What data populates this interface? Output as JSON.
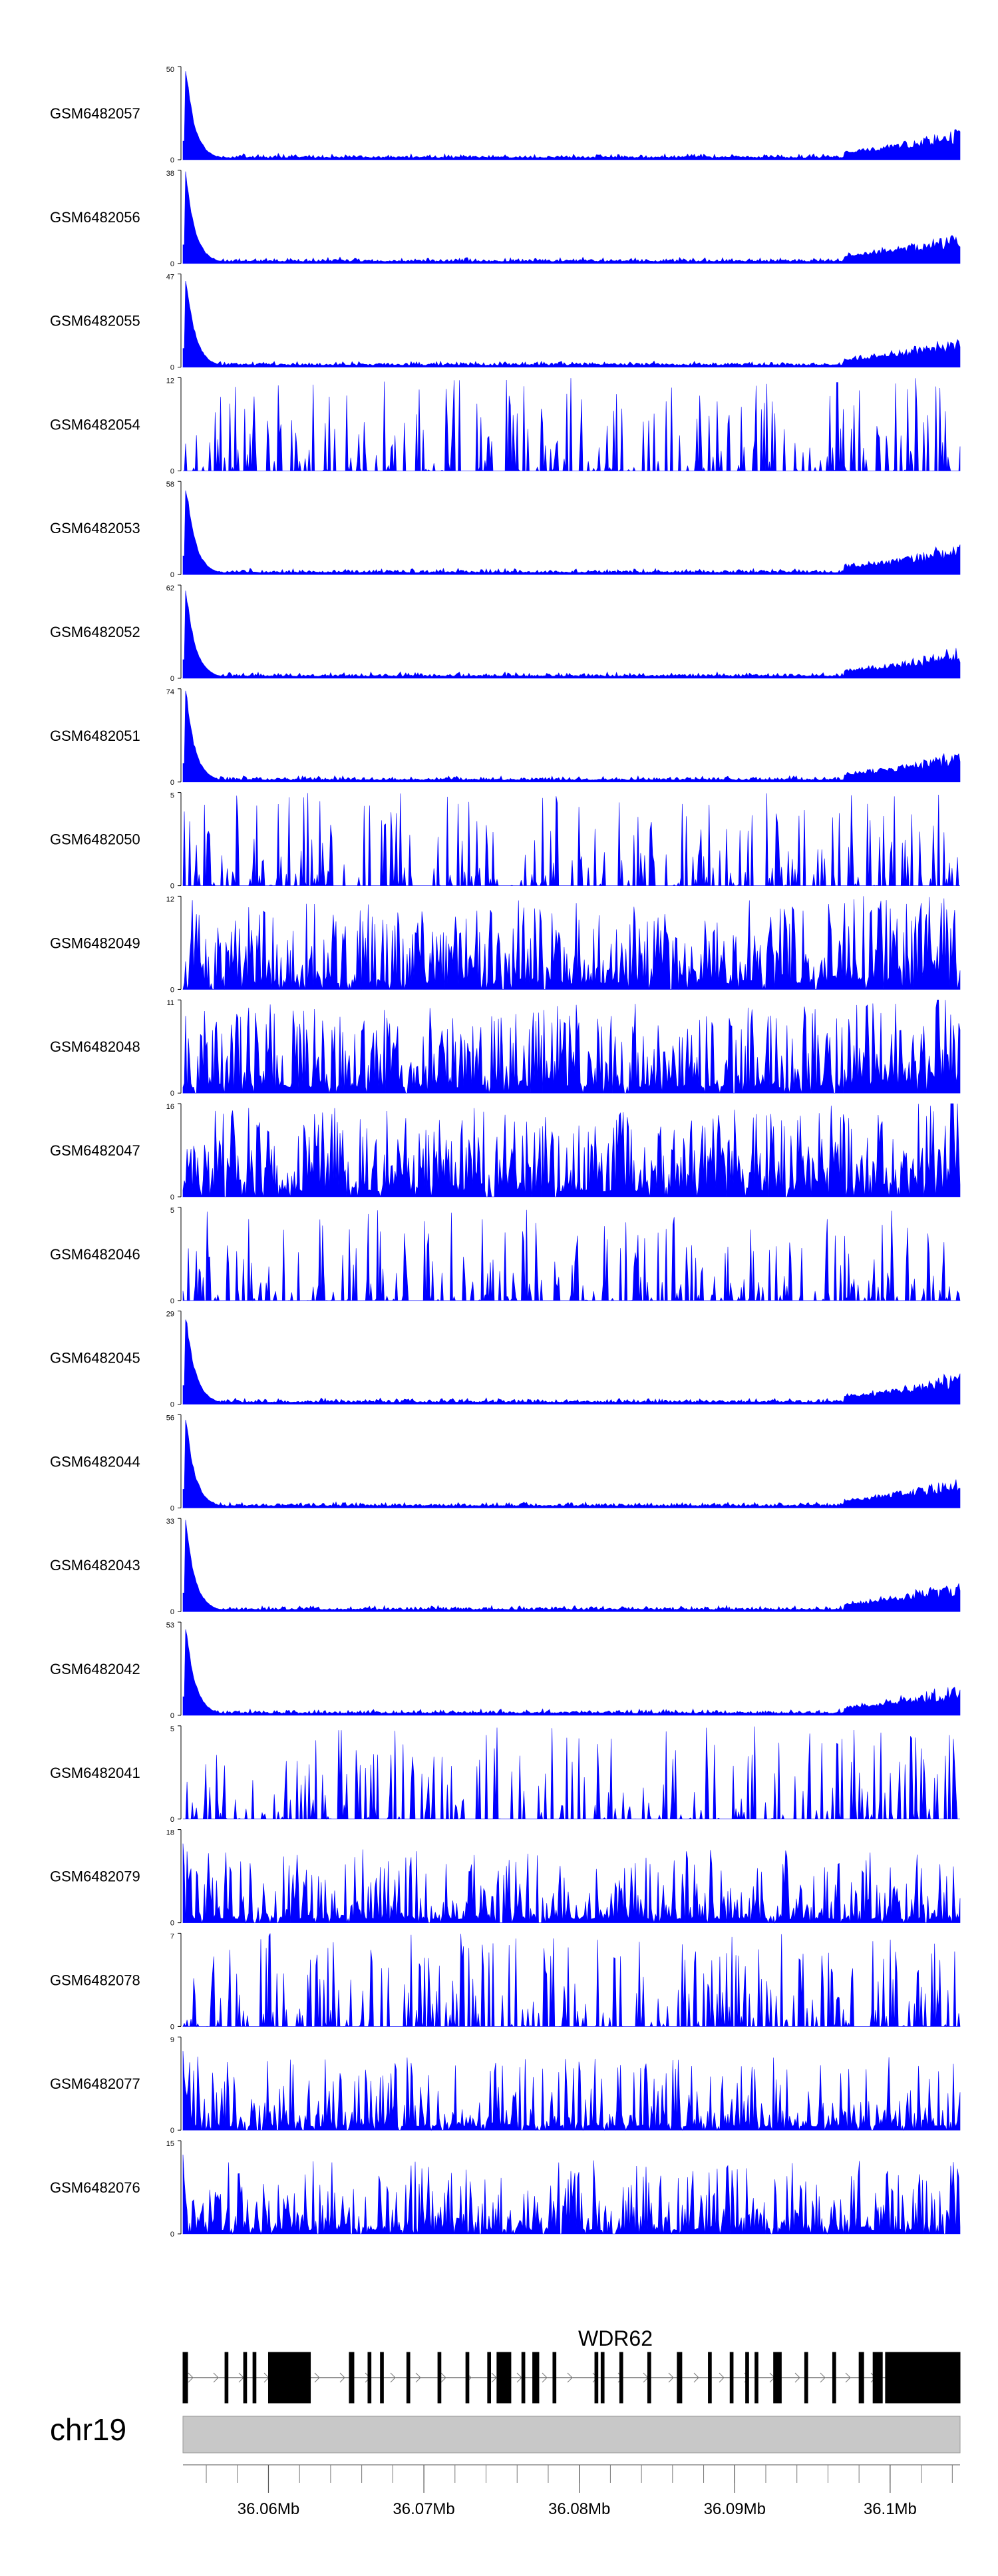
{
  "chart_data": {
    "type": "area",
    "title": "",
    "region": {
      "chromosome": "chr19",
      "start_mb": 36.0545,
      "end_mb": 36.1045,
      "ticks": [
        {
          "value": 36.06,
          "label": "36.06Mb"
        },
        {
          "value": 36.07,
          "label": "36.07Mb"
        },
        {
          "value": 36.08,
          "label": "36.08Mb"
        },
        {
          "value": 36.09,
          "label": "36.09Mb"
        },
        {
          "value": 36.1,
          "label": "36.1Mb"
        }
      ],
      "minor_tick_step_mb": 0.002
    },
    "series_color": "#0000ff",
    "ideogram_color": "#c8c8c8",
    "tracks": [
      {
        "name": "GSM6482057",
        "ymax": 50,
        "ymin_label": "0",
        "ymax_label": "50",
        "profile": "peak"
      },
      {
        "name": "GSM6482056",
        "ymax": 38,
        "ymin_label": "0",
        "ymax_label": "38",
        "profile": "peak"
      },
      {
        "name": "GSM6482055",
        "ymax": 47,
        "ymin_label": "0",
        "ymax_label": "47",
        "profile": "peak"
      },
      {
        "name": "GSM6482054",
        "ymax": 12,
        "ymin_label": "0",
        "ymax_label": "12",
        "profile": "noisy"
      },
      {
        "name": "GSM6482053",
        "ymax": 58,
        "ymin_label": "0",
        "ymax_label": "58",
        "profile": "peak"
      },
      {
        "name": "GSM6482052",
        "ymax": 62,
        "ymin_label": "0",
        "ymax_label": "62",
        "profile": "peak"
      },
      {
        "name": "GSM6482051",
        "ymax": 74,
        "ymin_label": "0",
        "ymax_label": "74",
        "profile": "peak"
      },
      {
        "name": "GSM6482050",
        "ymax": 5,
        "ymin_label": "0",
        "ymax_label": "5",
        "profile": "noisy"
      },
      {
        "name": "GSM6482049",
        "ymax": 12,
        "ymin_label": "0",
        "ymax_label": "12",
        "profile": "dense"
      },
      {
        "name": "GSM6482048",
        "ymax": 11,
        "ymin_label": "0",
        "ymax_label": "11",
        "profile": "dense"
      },
      {
        "name": "GSM6482047",
        "ymax": 16,
        "ymin_label": "0",
        "ymax_label": "16",
        "profile": "dense"
      },
      {
        "name": "GSM6482046",
        "ymax": 5,
        "ymin_label": "0",
        "ymax_label": "5",
        "profile": "noisy"
      },
      {
        "name": "GSM6482045",
        "ymax": 29,
        "ymin_label": "0",
        "ymax_label": "29",
        "profile": "peak"
      },
      {
        "name": "GSM6482044",
        "ymax": 56,
        "ymin_label": "0",
        "ymax_label": "56",
        "profile": "peak"
      },
      {
        "name": "GSM6482043",
        "ymax": 33,
        "ymin_label": "0",
        "ymax_label": "33",
        "profile": "peak"
      },
      {
        "name": "GSM6482042",
        "ymax": 53,
        "ymin_label": "0",
        "ymax_label": "53",
        "profile": "peak"
      },
      {
        "name": "GSM6482041",
        "ymax": 5,
        "ymin_label": "0",
        "ymax_label": "5",
        "profile": "noisy"
      },
      {
        "name": "GSM6482079",
        "ymax": 18,
        "ymin_label": "0",
        "ymax_label": "18",
        "profile": "moderate"
      },
      {
        "name": "GSM6482078",
        "ymax": 7,
        "ymin_label": "0",
        "ymax_label": "7",
        "profile": "noisy"
      },
      {
        "name": "GSM6482077",
        "ymax": 9,
        "ymin_label": "0",
        "ymax_label": "9",
        "profile": "moderate"
      },
      {
        "name": "GSM6482076",
        "ymax": 15,
        "ymin_label": "0",
        "ymax_label": "15",
        "profile": "moderate"
      }
    ],
    "gene": {
      "name": "WDR62",
      "strand": "+",
      "exons_mb": [
        [
          36.0545,
          36.0548
        ],
        [
          36.0572,
          36.0574
        ],
        [
          36.0584,
          36.0586
        ],
        [
          36.059,
          36.0592
        ],
        [
          36.06,
          36.0627
        ],
        [
          36.0652,
          36.0655
        ],
        [
          36.0664,
          36.0666
        ],
        [
          36.0672,
          36.0674
        ],
        [
          36.0689,
          36.0691
        ],
        [
          36.0709,
          36.0711
        ],
        [
          36.0727,
          36.0729
        ],
        [
          36.0741,
          36.0743
        ],
        [
          36.0747,
          36.0756
        ],
        [
          36.0763,
          36.0765
        ],
        [
          36.077,
          36.0774
        ],
        [
          36.0783,
          36.0785
        ],
        [
          36.081,
          36.0812
        ],
        [
          36.0814,
          36.0816
        ],
        [
          36.0826,
          36.0828
        ],
        [
          36.0844,
          36.0846
        ],
        [
          36.0863,
          36.0866
        ],
        [
          36.0883,
          36.0885
        ],
        [
          36.0897,
          36.0899
        ],
        [
          36.0907,
          36.0909
        ],
        [
          36.0913,
          36.0915
        ],
        [
          36.0925,
          36.093
        ],
        [
          36.0945,
          36.0947
        ],
        [
          36.0963,
          36.0965
        ],
        [
          36.098,
          36.0983
        ],
        [
          36.0989,
          36.0995
        ],
        [
          36.0997,
          36.1045
        ]
      ]
    }
  }
}
